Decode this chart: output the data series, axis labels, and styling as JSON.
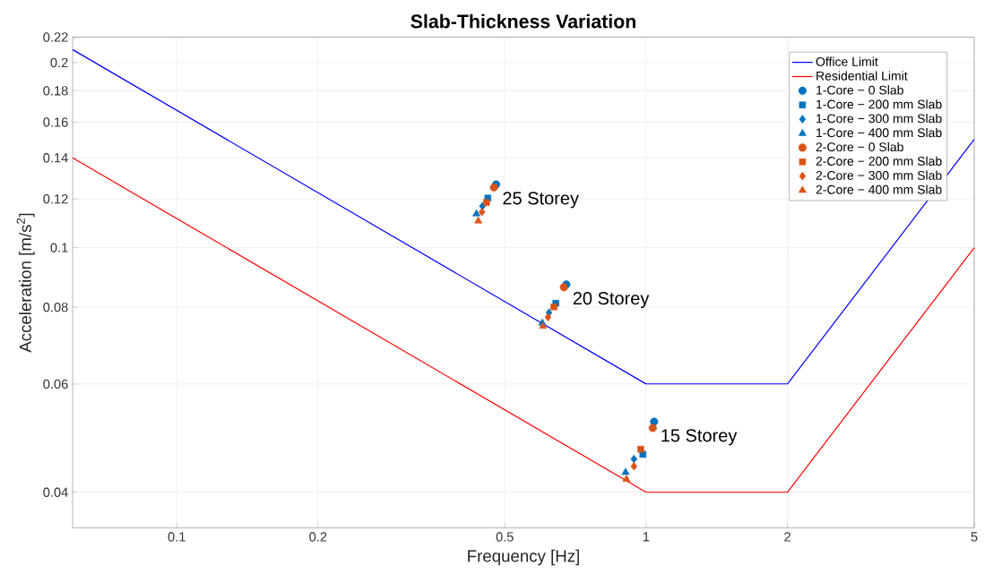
{
  "chart_data": {
    "type": "scatter",
    "title": "Slab-Thickness Variation",
    "xlabel": "Frequency [Hz]",
    "ylabel": "Acceleration [m/s$^{2}$]",
    "log": "xy",
    "grid": true,
    "legend": "top right",
    "xlim": [
      0.06,
      5
    ],
    "ylim": [
      0.035,
      0.22
    ],
    "xticks": [
      0.1,
      0.2,
      0.5,
      1,
      2,
      5
    ],
    "yticks": [
      0.04,
      0.06,
      0.08,
      0.1,
      0.12,
      0.14,
      0.16,
      0.18,
      0.2,
      0.22
    ],
    "series": [
      {
        "name": "Office Limit",
        "type": "line",
        "color": "#0000ff",
        "x": [
          0.06,
          1,
          2,
          5
        ],
        "values": [
          0.21,
          0.06,
          0.06,
          0.15
        ]
      },
      {
        "name": "Residential Limit",
        "type": "line",
        "color": "#ff0000",
        "x": [
          0.06,
          1,
          2,
          5
        ],
        "values": [
          0.14,
          0.04,
          0.04,
          0.1
        ]
      },
      {
        "name": "1-Core − 0 Slab",
        "marker": "circle",
        "color": "#0072bd",
        "x": [
          0.479,
          0.676,
          1.04
        ],
        "values": [
          0.1267,
          0.0871,
          0.0521
        ]
      },
      {
        "name": "1-Core − 200 mm Slab",
        "marker": "square",
        "color": "#0072bd",
        "x": [
          0.46,
          0.642,
          0.984
        ],
        "values": [
          0.1204,
          0.0812,
          0.0461
        ]
      },
      {
        "name": "1-Core − 300 mm Slab",
        "marker": "diamond",
        "color": "#0072bd",
        "x": [
          0.448,
          0.621,
          0.942
        ],
        "values": [
          0.1168,
          0.0784,
          0.0453
        ]
      },
      {
        "name": "1-Core − 400 mm Slab",
        "marker": "triangle",
        "color": "#0072bd",
        "x": [
          0.435,
          0.601,
          0.904
        ],
        "values": [
          0.1135,
          0.0754,
          0.0431
        ]
      },
      {
        "name": "2-Core − 0 Slab",
        "marker": "circle",
        "color": "#d95319",
        "x": [
          0.474,
          0.668,
          1.033
        ],
        "values": [
          0.1253,
          0.0862,
          0.0509
        ]
      },
      {
        "name": "2-Core − 200 mm Slab",
        "marker": "square",
        "color": "#d95319",
        "x": [
          0.457,
          0.636,
          0.974
        ],
        "values": [
          0.1184,
          0.0801,
          0.047
        ]
      },
      {
        "name": "2-Core − 300 mm Slab",
        "marker": "diamond",
        "color": "#d95319",
        "x": [
          0.447,
          0.618,
          0.942
        ],
        "values": [
          0.1143,
          0.0771,
          0.0441
        ]
      },
      {
        "name": "2-Core − 400 mm Slab",
        "marker": "triangle",
        "color": "#d95319",
        "x": [
          0.439,
          0.603,
          0.908
        ],
        "values": [
          0.1105,
          0.0745,
          0.042
        ]
      }
    ],
    "annotations": [
      "25 Storey",
      "20 Storey",
      "15 Storey"
    ]
  }
}
